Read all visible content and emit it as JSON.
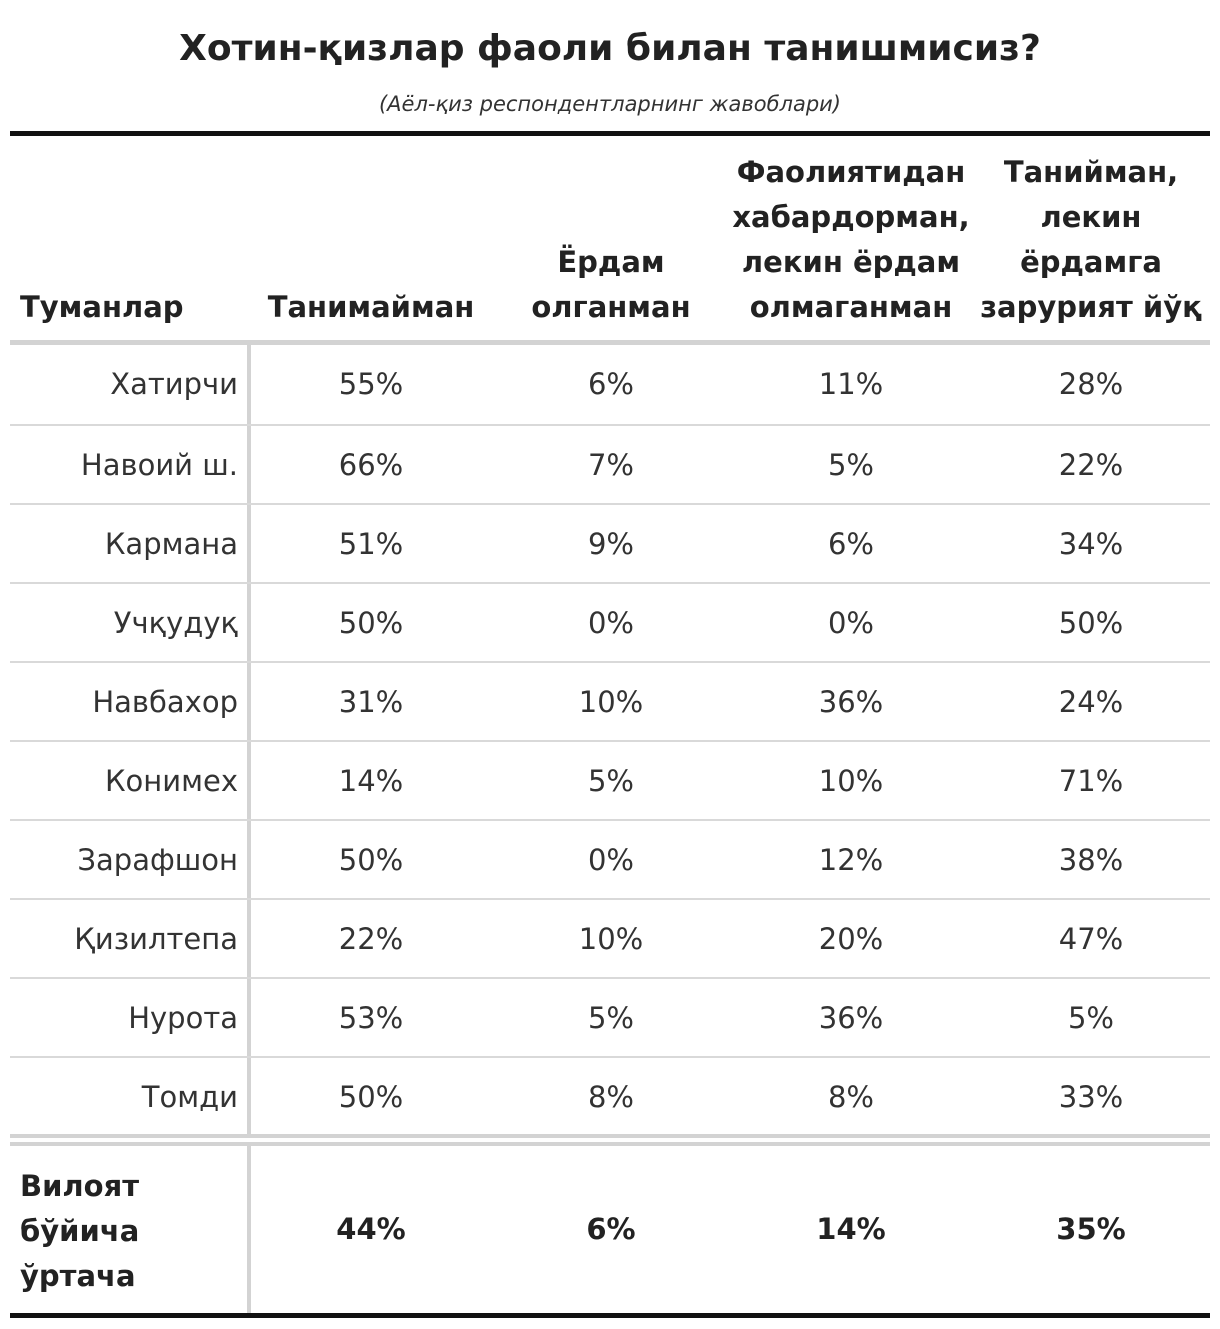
{
  "title": "Хотин-қизлар фаоли билан танишмисиз?",
  "subtitle": "(Аёл-қиз респондентларнинг жавоблари)",
  "header": {
    "district": [
      "Туманлар"
    ],
    "col1": [
      "Танимайман"
    ],
    "col2": [
      "Ёрдам",
      "олганман"
    ],
    "col3": [
      "Фаолиятидан",
      "хабардорман,",
      "лекин ёрдам",
      "олмаганман"
    ],
    "col4": [
      "Танийман,",
      "лекин",
      "ёрдамга",
      "зарурият йўқ"
    ]
  },
  "rows": [
    {
      "district": "Хатирчи",
      "v1": "55%",
      "v2": "6%",
      "v3": "11%",
      "v4": "28%"
    },
    {
      "district": "Навоий ш.",
      "v1": "66%",
      "v2": "7%",
      "v3": "5%",
      "v4": "22%"
    },
    {
      "district": "Кармана",
      "v1": "51%",
      "v2": "9%",
      "v3": "6%",
      "v4": "34%"
    },
    {
      "district": "Учқудуқ",
      "v1": "50%",
      "v2": "0%",
      "v3": "0%",
      "v4": "50%"
    },
    {
      "district": "Навбахор",
      "v1": "31%",
      "v2": "10%",
      "v3": "36%",
      "v4": "24%"
    },
    {
      "district": "Конимех",
      "v1": "14%",
      "v2": "5%",
      "v3": "10%",
      "v4": "71%"
    },
    {
      "district": "Зарафшон",
      "v1": "50%",
      "v2": "0%",
      "v3": "12%",
      "v4": "38%"
    },
    {
      "district": "Қизилтепа",
      "v1": "22%",
      "v2": "10%",
      "v3": "20%",
      "v4": "47%"
    },
    {
      "district": "Нурота",
      "v1": "53%",
      "v2": "5%",
      "v3": "36%",
      "v4": "5%"
    },
    {
      "district": "Томди",
      "v1": "50%",
      "v2": "8%",
      "v3": "8%",
      "v4": "33%"
    }
  ],
  "total": {
    "label": [
      "Вилоят",
      "бўйича",
      "ўртача"
    ],
    "v1": "44%",
    "v2": "6%",
    "v3": "14%",
    "v4": "35%"
  }
}
